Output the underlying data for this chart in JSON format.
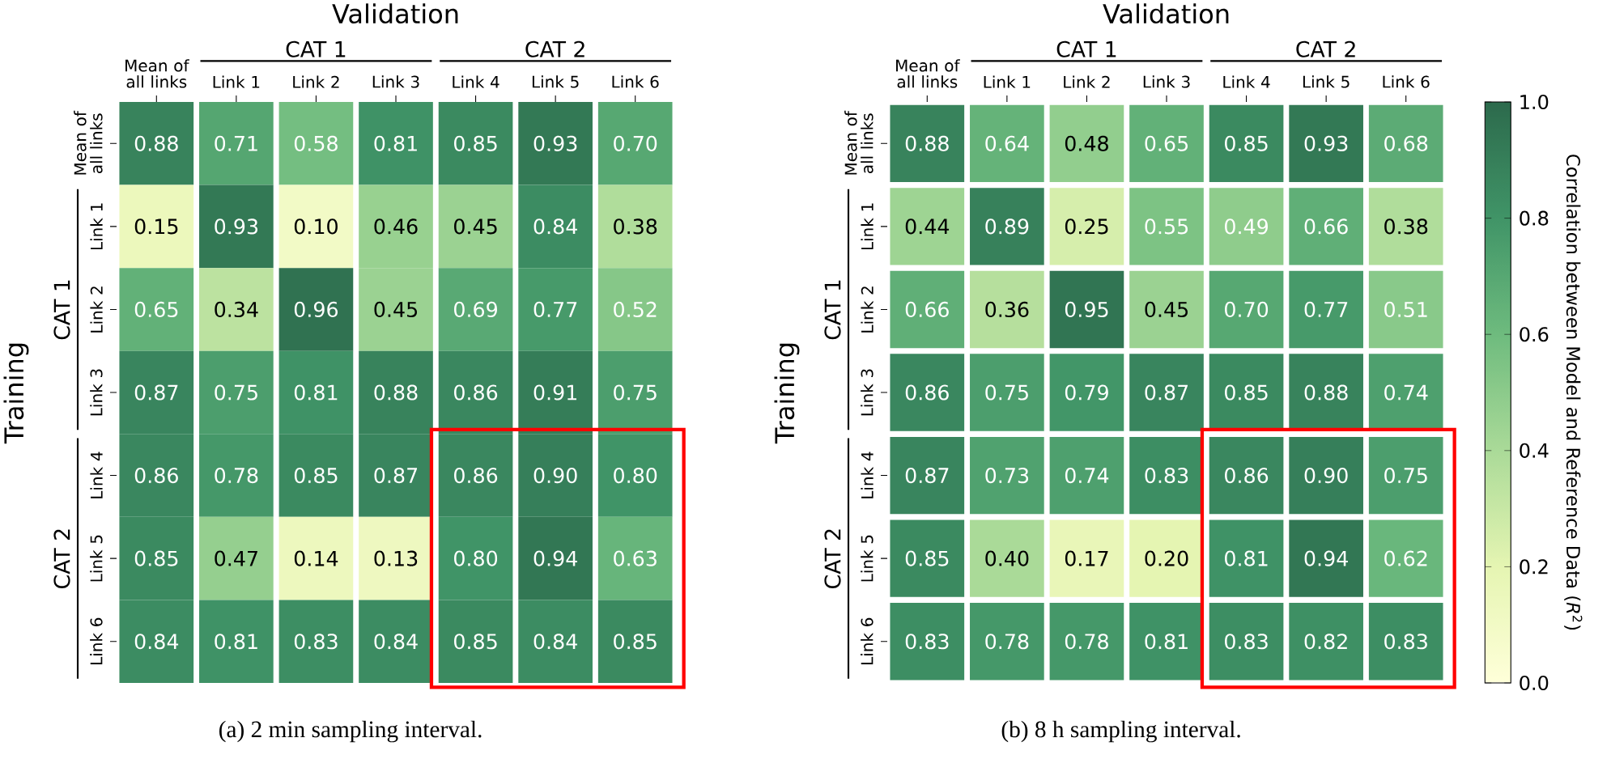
{
  "chart_data": [
    {
      "type": "heatmap",
      "title": "Validation",
      "ylabel": "Training",
      "categories": [
        "Mean of all links",
        "Link 1",
        "Link 2",
        "Link 3",
        "Link 4",
        "Link 5",
        "Link 6"
      ],
      "y_categories": [
        "Mean of all links",
        "Link 1",
        "Link 2",
        "Link 3",
        "Link 4",
        "Link 5",
        "Link 6"
      ],
      "cells": [
        [
          0.88,
          0.71,
          0.58,
          0.81,
          0.85,
          0.93,
          0.7
        ],
        [
          0.15,
          0.93,
          0.1,
          0.46,
          0.45,
          0.84,
          0.38
        ],
        [
          0.65,
          0.34,
          0.96,
          0.45,
          0.69,
          0.77,
          0.52
        ],
        [
          0.87,
          0.75,
          0.81,
          0.88,
          0.86,
          0.91,
          0.75
        ],
        [
          0.86,
          0.78,
          0.85,
          0.87,
          0.86,
          0.9,
          0.8
        ],
        [
          0.85,
          0.47,
          0.14,
          0.13,
          0.8,
          0.94,
          0.63
        ],
        [
          0.84,
          0.81,
          0.83,
          0.84,
          0.85,
          0.84,
          0.85
        ]
      ],
      "cell_labels": [
        [
          "0.88",
          "0.71",
          "0.58",
          "0.81",
          "0.85",
          "0.93",
          "0.70"
        ],
        [
          "0.15",
          "0.93",
          "0.10",
          "0.46",
          "0.45",
          "0.84",
          "0.38"
        ],
        [
          "0.65",
          "0.34",
          "0.96",
          "0.45",
          "0.69",
          "0.77",
          "0.52"
        ],
        [
          "0.87",
          "0.75",
          "0.81",
          "0.88",
          "0.86",
          "0.91",
          "0.75"
        ],
        [
          "0.86",
          "0.78",
          "0.85",
          "0.87",
          "0.86",
          "0.90",
          "0.80"
        ],
        [
          "0.85",
          "0.47",
          "0.14",
          "0.13",
          "0.80",
          "0.94",
          "0.63"
        ],
        [
          "0.84",
          "0.81",
          "0.83",
          "0.84",
          "0.85",
          "0.84",
          "0.85"
        ]
      ],
      "annotations": [
        "CAT 1",
        "CAT 2",
        "CAT 1",
        "CAT 2",
        "(a) 2 min sampling interval."
      ]
    },
    {
      "type": "heatmap",
      "title": "Validation",
      "ylabel": "Training",
      "categories": [
        "Mean of all links",
        "Link 1",
        "Link 2",
        "Link 3",
        "Link 4",
        "Link 5",
        "Link 6"
      ],
      "y_categories": [
        "Mean of all links",
        "Link 1",
        "Link 2",
        "Link 3",
        "Link 4",
        "Link 5",
        "Link 6"
      ],
      "cells": [
        [
          0.88,
          0.64,
          0.48,
          0.65,
          0.85,
          0.93,
          0.68
        ],
        [
          0.44,
          0.89,
          0.25,
          0.55,
          0.49,
          0.66,
          0.38
        ],
        [
          0.66,
          0.36,
          0.95,
          0.45,
          0.7,
          0.77,
          0.51
        ],
        [
          0.86,
          0.75,
          0.79,
          0.87,
          0.85,
          0.88,
          0.74
        ],
        [
          0.87,
          0.73,
          0.74,
          0.83,
          0.86,
          0.9,
          0.75
        ],
        [
          0.85,
          0.4,
          0.17,
          0.2,
          0.81,
          0.94,
          0.62
        ],
        [
          0.83,
          0.78,
          0.78,
          0.81,
          0.83,
          0.82,
          0.83
        ]
      ],
      "cell_labels": [
        [
          "0.88",
          "0.64",
          "0.48",
          "0.65",
          "0.85",
          "0.93",
          "0.68"
        ],
        [
          "0.44",
          "0.89",
          "0.25",
          "0.55",
          "0.49",
          "0.66",
          "0.38"
        ],
        [
          "0.66",
          "0.36",
          "0.95",
          "0.45",
          "0.70",
          "0.77",
          "0.51"
        ],
        [
          "0.86",
          "0.75",
          "0.79",
          "0.87",
          "0.85",
          "0.88",
          "0.74"
        ],
        [
          "0.87",
          "0.73",
          "0.74",
          "0.83",
          "0.86",
          "0.90",
          "0.75"
        ],
        [
          "0.85",
          "0.40",
          "0.17",
          "0.20",
          "0.81",
          "0.94",
          "0.62"
        ],
        [
          "0.83",
          "0.78",
          "0.78",
          "0.81",
          "0.83",
          "0.82",
          "0.83"
        ]
      ],
      "clim": [
        0,
        1
      ],
      "cticks": [
        {
          "value": 0,
          "label": "0.0"
        },
        {
          "value": 0.2,
          "label": "0.2"
        },
        {
          "value": 0.4,
          "label": "0.4"
        },
        {
          "value": 0.6,
          "label": "0.6"
        },
        {
          "value": 0.8,
          "label": "0.8"
        },
        {
          "value": 1,
          "label": "1.0"
        }
      ],
      "clabel": "Correlation between Model and Reference Data (*R*$^{2}$)",
      "annotations": [
        "CAT 1",
        "CAT 2",
        "CAT 1",
        "CAT 2",
        "(b) 8 h sampling interval."
      ]
    }
  ]
}
